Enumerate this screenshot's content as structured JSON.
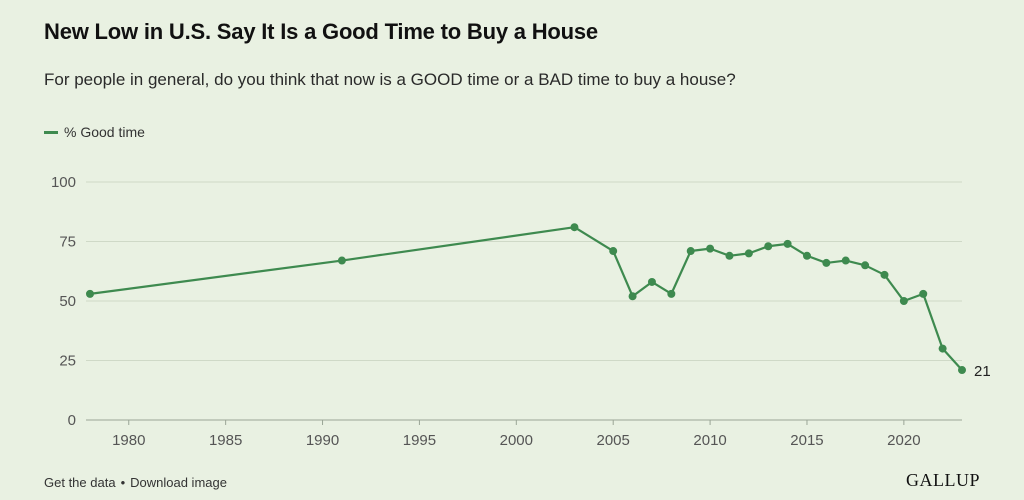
{
  "header": {
    "title": "New Low in U.S. Say It Is a Good Time to Buy a House",
    "subtitle": "For people in general, do you think that now is a GOOD time or a BAD time to buy a house?"
  },
  "footer": {
    "get_data_label": "Get the data",
    "separator": "•",
    "download_label": "Download image",
    "brand": "GALLUP"
  },
  "colors": {
    "series": "#3e8a4f",
    "grid": "#cfd9c7",
    "axis": "#555555",
    "background": "#e9f1e2"
  },
  "chart_data": {
    "type": "line",
    "title": "New Low in U.S. Say It Is a Good Time to Buy a House",
    "xlabel": "",
    "ylabel": "",
    "xlim": [
      1978,
      2023
    ],
    "ylim": [
      0,
      100
    ],
    "xticks": [
      1980,
      1985,
      1990,
      1995,
      2000,
      2005,
      2010,
      2015,
      2020
    ],
    "yticks": [
      0,
      25,
      50,
      75,
      100
    ],
    "grid": true,
    "legend_position": "top-left",
    "series": [
      {
        "name": "% Good time",
        "x": [
          1978,
          1991,
          2003,
          2005,
          2006,
          2007,
          2008,
          2009,
          2010,
          2011,
          2012,
          2013,
          2014,
          2015,
          2016,
          2017,
          2018,
          2019,
          2020,
          2021,
          2022,
          2023
        ],
        "values": [
          53,
          67,
          81,
          71,
          52,
          58,
          53,
          71,
          72,
          69,
          70,
          73,
          74,
          69,
          66,
          67,
          65,
          61,
          50,
          53,
          30,
          21
        ]
      }
    ],
    "annotations": [
      {
        "x": 2023,
        "y": 21,
        "text": "21"
      }
    ]
  }
}
